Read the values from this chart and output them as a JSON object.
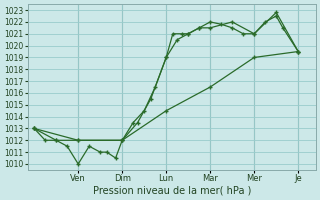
{
  "xlabel": "Pression niveau de la mer( hPa )",
  "ylim": [
    1009.5,
    1023.5
  ],
  "yticks": [
    1010,
    1011,
    1012,
    1013,
    1014,
    1015,
    1016,
    1017,
    1018,
    1019,
    1020,
    1021,
    1022,
    1023
  ],
  "day_labels": [
    "Ven",
    "Dim",
    "Lun",
    "Mar",
    "Mer",
    "Je"
  ],
  "day_positions": [
    2.0,
    4.0,
    6.0,
    8.0,
    10.0,
    12.0
  ],
  "xlim": [
    -0.3,
    12.8
  ],
  "background_color": "#cce8e8",
  "grid_color": "#99cccc",
  "line_color": "#2a6b2a",
  "line1_x": [
    0,
    0.5,
    1.0,
    1.5,
    2.0,
    2.5,
    3.0,
    3.3,
    3.7,
    4.0,
    4.5,
    5.0,
    5.5,
    6.0,
    6.3,
    6.7,
    7.0,
    7.5,
    8.0,
    8.5,
    9.0,
    9.5,
    10.0,
    10.5,
    11.0,
    11.3,
    12.0
  ],
  "line1_y": [
    1013,
    1012,
    1012,
    1011.5,
    1010,
    1011.5,
    1011,
    1011,
    1010.5,
    1012,
    1013.5,
    1014.5,
    1016.5,
    1019,
    1021,
    1021,
    1021,
    1021.5,
    1022,
    1021.8,
    1021.5,
    1021,
    1021,
    1022,
    1022.5,
    1021.5,
    1019.5
  ],
  "line2_x": [
    0,
    2.0,
    4.0,
    6.0,
    8.0,
    10.0,
    12.0
  ],
  "line2_y": [
    1013,
    1012,
    1012,
    1014.5,
    1016.5,
    1019,
    1019.5
  ],
  "line3_x": [
    0,
    1.0,
    2.0,
    4.0,
    4.7,
    5.3,
    6.0,
    6.5,
    7.0,
    7.5,
    8.0,
    9.0,
    10.0,
    11.0,
    12.0
  ],
  "line3_y": [
    1013,
    1012,
    1012,
    1012,
    1013.5,
    1015.5,
    1019,
    1020.5,
    1021,
    1021.5,
    1021.5,
    1022,
    1021,
    1022.8,
    1019.5
  ]
}
